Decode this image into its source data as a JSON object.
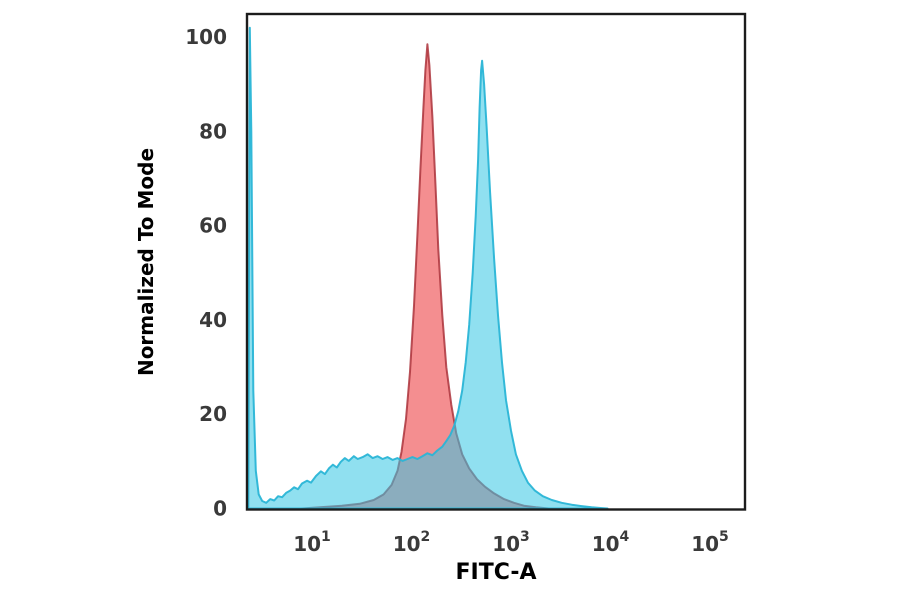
{
  "figure": {
    "background": "#ffffff",
    "frame_color": "#1c1c1c",
    "tick_text_color": "#3a3a3a"
  },
  "chart_data": {
    "type": "area",
    "subtype": "flow-cytometry-histogram-overlay",
    "title": "",
    "xlabel": "FITC-A",
    "ylabel": "Normalized To Mode",
    "x_scale": "log10",
    "xlim_log10": [
      0.347,
      5.352
    ],
    "ylim": [
      0,
      104.9
    ],
    "grid": false,
    "legend": "none",
    "x_tick_base": "10",
    "x_tick_exponents": [
      1,
      2,
      3,
      4,
      5
    ],
    "y_ticks": [
      0,
      20,
      40,
      60,
      80,
      100
    ],
    "series": [
      {
        "name": "red-series",
        "fill": "rgba(238,72,76,0.62)",
        "stroke": "rgba(172,52,60,0.85)",
        "stroke_width": 2,
        "peak": {
          "x_log10": 2.16,
          "y": 98.5
        },
        "points": [
          [
            0.9,
            0
          ],
          [
            1.1,
            0.3
          ],
          [
            1.3,
            0.6
          ],
          [
            1.48,
            1.0
          ],
          [
            1.62,
            1.8
          ],
          [
            1.72,
            3.0
          ],
          [
            1.8,
            5.0
          ],
          [
            1.86,
            8.0
          ],
          [
            1.9,
            12
          ],
          [
            1.945,
            19
          ],
          [
            1.985,
            29
          ],
          [
            2.025,
            43
          ],
          [
            2.06,
            58
          ],
          [
            2.09,
            72
          ],
          [
            2.12,
            85
          ],
          [
            2.14,
            93
          ],
          [
            2.16,
            98.5
          ],
          [
            2.18,
            94
          ],
          [
            2.21,
            83
          ],
          [
            2.24,
            69
          ],
          [
            2.27,
            55
          ],
          [
            2.31,
            41
          ],
          [
            2.35,
            30
          ],
          [
            2.4,
            22
          ],
          [
            2.45,
            16
          ],
          [
            2.51,
            11.5
          ],
          [
            2.58,
            8.5
          ],
          [
            2.66,
            6.2
          ],
          [
            2.74,
            4.6
          ],
          [
            2.83,
            3.2
          ],
          [
            2.93,
            2.0
          ],
          [
            3.03,
            1.2
          ],
          [
            3.13,
            0.6
          ],
          [
            3.25,
            0.25
          ],
          [
            3.38,
            0
          ]
        ]
      },
      {
        "name": "cyan-series",
        "fill": "rgba(53,198,227,0.55)",
        "stroke": "rgba(42,181,214,0.95)",
        "stroke_width": 2,
        "peak": {
          "x_log10": 2.71,
          "y": 95
        },
        "points": [
          [
            0.36,
            0
          ],
          [
            0.375,
            102
          ],
          [
            0.39,
            80
          ],
          [
            0.41,
            25
          ],
          [
            0.435,
            8
          ],
          [
            0.465,
            3
          ],
          [
            0.5,
            1.6
          ],
          [
            0.54,
            1.2
          ],
          [
            0.58,
            2.0
          ],
          [
            0.62,
            1.7
          ],
          [
            0.66,
            2.6
          ],
          [
            0.7,
            2.4
          ],
          [
            0.74,
            3.3
          ],
          [
            0.78,
            3.8
          ],
          [
            0.82,
            4.5
          ],
          [
            0.86,
            4.1
          ],
          [
            0.9,
            5.3
          ],
          [
            0.95,
            5.9
          ],
          [
            0.99,
            5.5
          ],
          [
            1.04,
            6.9
          ],
          [
            1.09,
            7.9
          ],
          [
            1.13,
            7.3
          ],
          [
            1.17,
            8.5
          ],
          [
            1.21,
            9.3
          ],
          [
            1.25,
            8.7
          ],
          [
            1.29,
            9.9
          ],
          [
            1.33,
            10.7
          ],
          [
            1.37,
            10.1
          ],
          [
            1.42,
            11.1
          ],
          [
            1.46,
            10.5
          ],
          [
            1.51,
            10.9
          ],
          [
            1.56,
            11.5
          ],
          [
            1.61,
            10.7
          ],
          [
            1.66,
            11.1
          ],
          [
            1.71,
            10.5
          ],
          [
            1.76,
            10.9
          ],
          [
            1.81,
            10.3
          ],
          [
            1.86,
            10.7
          ],
          [
            1.91,
            10.1
          ],
          [
            1.96,
            10.5
          ],
          [
            2.01,
            10.9
          ],
          [
            2.06,
            10.5
          ],
          [
            2.11,
            11.1
          ],
          [
            2.16,
            11.7
          ],
          [
            2.21,
            11.3
          ],
          [
            2.26,
            12.3
          ],
          [
            2.31,
            13.1
          ],
          [
            2.35,
            14.3
          ],
          [
            2.39,
            15.6
          ],
          [
            2.43,
            17.6
          ],
          [
            2.47,
            20.6
          ],
          [
            2.51,
            25
          ],
          [
            2.545,
            31
          ],
          [
            2.58,
            39
          ],
          [
            2.615,
            50
          ],
          [
            2.645,
            62
          ],
          [
            2.67,
            74
          ],
          [
            2.685,
            85
          ],
          [
            2.7,
            93
          ],
          [
            2.71,
            95
          ],
          [
            2.73,
            90
          ],
          [
            2.755,
            81
          ],
          [
            2.79,
            67
          ],
          [
            2.83,
            53
          ],
          [
            2.87,
            41
          ],
          [
            2.91,
            31
          ],
          [
            2.95,
            23
          ],
          [
            3.0,
            16.5
          ],
          [
            3.05,
            11.5
          ],
          [
            3.11,
            8
          ],
          [
            3.17,
            5.5
          ],
          [
            3.24,
            3.8
          ],
          [
            3.32,
            2.6
          ],
          [
            3.41,
            1.8
          ],
          [
            3.51,
            1.2
          ],
          [
            3.61,
            0.8
          ],
          [
            3.71,
            0.5
          ],
          [
            3.81,
            0.25
          ],
          [
            3.9,
            0.1
          ],
          [
            3.97,
            0
          ]
        ]
      }
    ]
  }
}
